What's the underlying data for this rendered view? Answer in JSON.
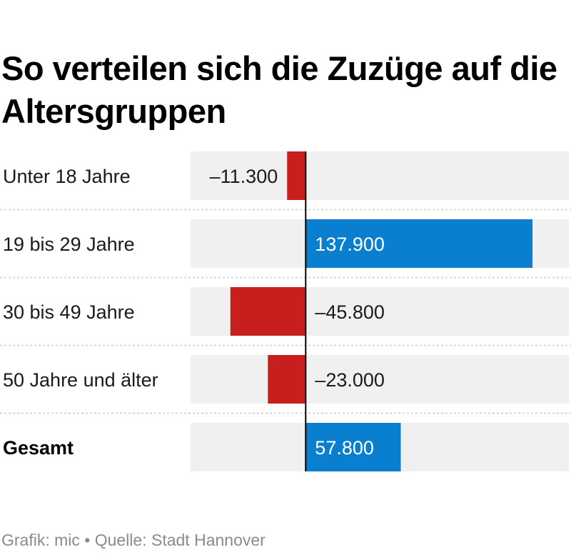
{
  "header": {
    "title": "So verteilen sich die Zuzüge auf die Altersgruppen"
  },
  "chart_data": {
    "type": "bar",
    "orientation": "horizontal",
    "title": "So verteilen sich die Zuzüge auf die Altersgruppen",
    "categories": [
      "Unter 18 Jahre",
      "19 bis 29 Jahre",
      "30 bis 49 Jahre",
      "50 Jahre und älter",
      "Gesamt"
    ],
    "values": [
      -11300,
      137900,
      -45800,
      -23000,
      57800
    ],
    "value_labels": [
      "–11.300",
      "137.900",
      "–45.800",
      "–23.000",
      "57.800"
    ],
    "total_category": "Gesamt",
    "xlim": [
      -70000,
      160000
    ],
    "colors": {
      "positive": "#0a7fd0",
      "negative": "#c81e1e",
      "track": "#f0f0f0",
      "axis": "#000000"
    }
  },
  "footer": {
    "source": "Grafik: mic • Quelle: Stadt Hannover"
  }
}
